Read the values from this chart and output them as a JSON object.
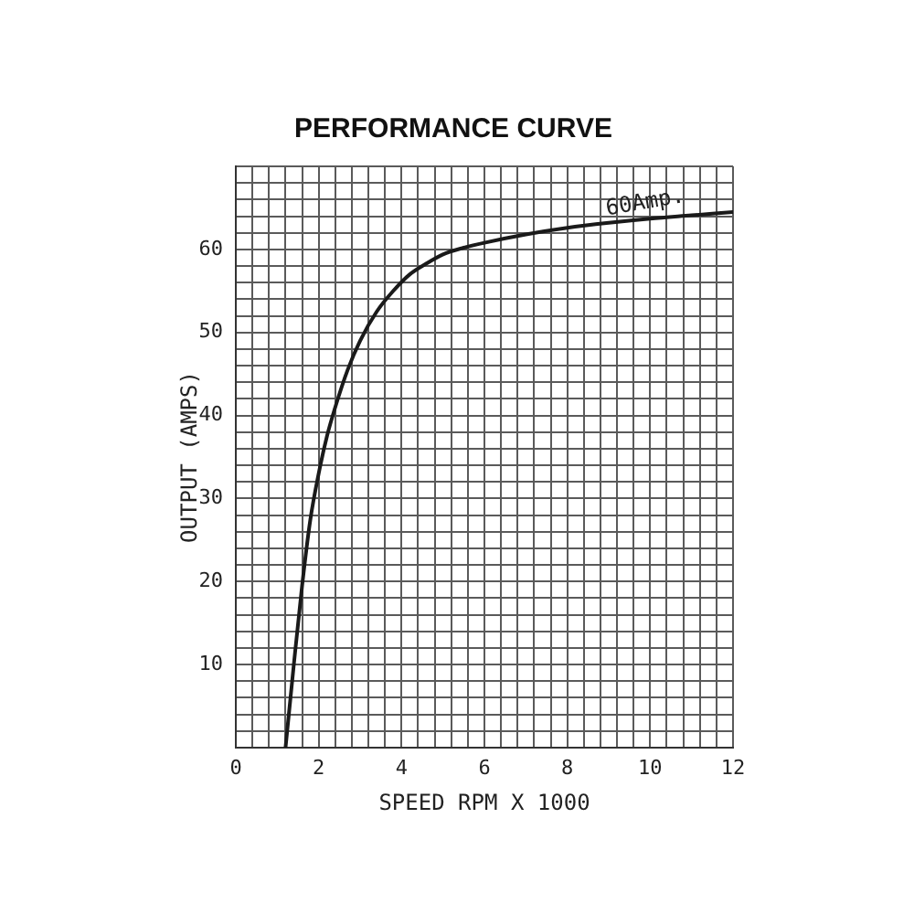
{
  "chart_data": {
    "type": "line",
    "title": "PERFORMANCE CURVE",
    "xlabel": "SPEED RPM X 1000",
    "ylabel": "OUTPUT (AMPS)",
    "series": [
      {
        "color": "#1a1a1a",
        "x": [
          1.2,
          1.4,
          1.6,
          1.8,
          2.0,
          2.2,
          2.4,
          2.7,
          3.0,
          3.4,
          3.8,
          4.2,
          4.6,
          5.0,
          5.5,
          6.0,
          7.0,
          8.0,
          9.0,
          10.0,
          11.0,
          12.0
        ],
        "values": [
          0,
          10,
          19.5,
          27.5,
          33,
          37.5,
          41,
          45.5,
          49,
          52.5,
          55,
          57,
          58.3,
          59.4,
          60.2,
          60.8,
          61.8,
          62.6,
          63.2,
          63.7,
          64.1,
          64.5
        ]
      }
    ],
    "annotations": [
      "60Amp."
    ],
    "xlim": [
      0,
      12
    ],
    "ylim": [
      0,
      70
    ],
    "xticks": [
      0,
      {
        "value": 0.4,
        "label": null
      },
      {
        "value": 0.8,
        "label": null
      },
      {
        "value": 1.2,
        "label": null
      },
      {
        "value": 1.6,
        "label": null
      },
      2,
      {
        "value": 2.4,
        "label": null
      },
      {
        "value": 2.8,
        "label": null
      },
      {
        "value": 3.2,
        "label": null
      },
      {
        "value": 3.6,
        "label": null
      },
      4,
      {
        "value": 4.4,
        "label": null
      },
      {
        "value": 4.8,
        "label": null
      },
      {
        "value": 5.2,
        "label": null
      },
      {
        "value": 5.6,
        "label": null
      },
      6,
      {
        "value": 6.4,
        "label": null
      },
      {
        "value": 6.8,
        "label": null
      },
      {
        "value": 7.2,
        "label": null
      },
      {
        "value": 7.6,
        "label": null
      },
      8,
      {
        "value": 8.4,
        "label": null
      },
      {
        "value": 8.8,
        "label": null
      },
      {
        "value": 9.2,
        "label": null
      },
      {
        "value": 9.6,
        "label": null
      },
      10,
      {
        "value": 10.4,
        "label": null
      },
      {
        "value": 10.8,
        "label": null
      },
      {
        "value": 11.2,
        "label": null
      },
      {
        "value": 11.6,
        "label": null
      },
      12
    ],
    "yticks": [
      {
        "value": 0,
        "label": null
      },
      {
        "value": 2,
        "label": null
      },
      {
        "value": 4,
        "label": null
      },
      {
        "value": 6,
        "label": null
      },
      {
        "value": 8,
        "label": null
      },
      10,
      {
        "value": 12,
        "label": null
      },
      {
        "value": 14,
        "label": null
      },
      {
        "value": 16,
        "label": null
      },
      {
        "value": 18,
        "label": null
      },
      20,
      {
        "value": 22,
        "label": null
      },
      {
        "value": 24,
        "label": null
      },
      {
        "value": 26,
        "label": null
      },
      {
        "value": 28,
        "label": null
      },
      30,
      {
        "value": 32,
        "label": null
      },
      {
        "value": 34,
        "label": null
      },
      {
        "value": 36,
        "label": null
      },
      {
        "value": 38,
        "label": null
      },
      40,
      {
        "value": 42,
        "label": null
      },
      {
        "value": 44,
        "label": null
      },
      {
        "value": 46,
        "label": null
      },
      {
        "value": 48,
        "label": null
      },
      50,
      {
        "value": 52,
        "label": null
      },
      {
        "value": 54,
        "label": null
      },
      {
        "value": 56,
        "label": null
      },
      {
        "value": 58,
        "label": null
      },
      60,
      {
        "value": 62,
        "label": null
      },
      {
        "value": 64,
        "label": null
      },
      {
        "value": 66,
        "label": null
      },
      {
        "value": 68,
        "label": null
      },
      {
        "value": 70,
        "label": null
      }
    ],
    "grid": true,
    "marker": "none",
    "line_style": "solid"
  }
}
